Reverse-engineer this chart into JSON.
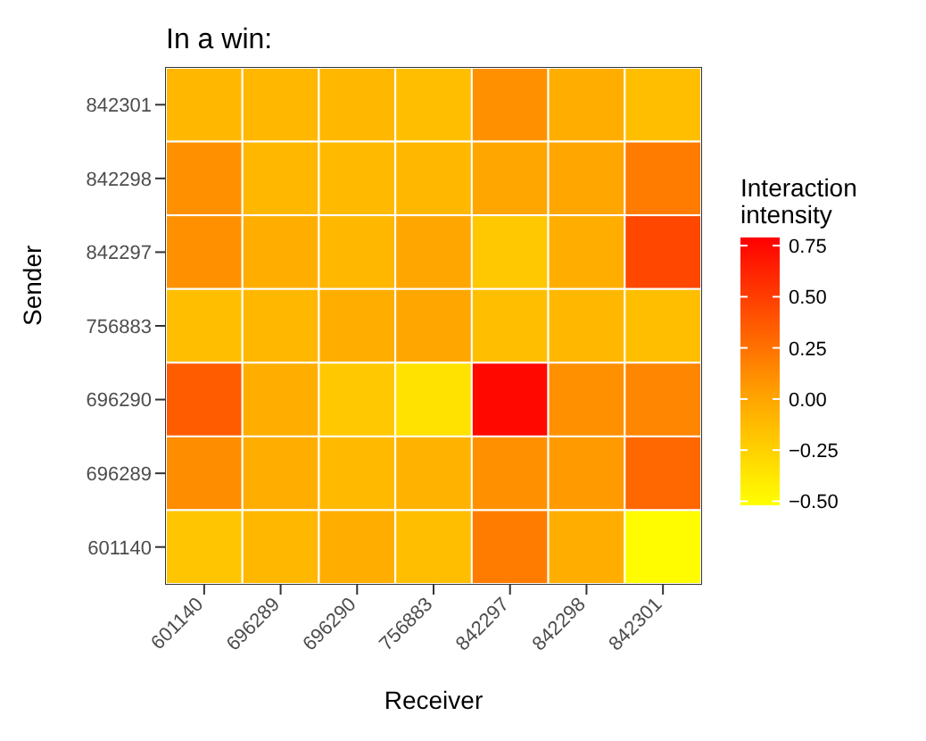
{
  "chart_data": {
    "type": "heatmap",
    "title": "In a win:",
    "xlabel": "Receiver",
    "ylabel": "Sender",
    "clabel": "Interaction intensity",
    "categories": [
      "601140",
      "696289",
      "696290",
      "756883",
      "842297",
      "842298",
      "842301"
    ],
    "y_categories": [
      "842301",
      "842298",
      "842297",
      "756883",
      "696290",
      "696289",
      "601140"
    ],
    "cells": [
      [
        -0.1,
        -0.1,
        -0.1,
        -0.15,
        0.1,
        -0.05,
        -0.15
      ],
      [
        0.1,
        -0.1,
        -0.12,
        -0.1,
        0.0,
        0.0,
        0.2
      ],
      [
        0.1,
        -0.05,
        -0.1,
        0.0,
        -0.2,
        -0.05,
        0.45
      ],
      [
        -0.15,
        -0.1,
        -0.05,
        0.0,
        -0.15,
        -0.1,
        -0.15
      ],
      [
        0.35,
        -0.05,
        -0.2,
        -0.35,
        0.75,
        0.1,
        0.15
      ],
      [
        0.12,
        -0.05,
        -0.12,
        -0.08,
        0.1,
        0.05,
        0.3
      ],
      [
        -0.18,
        -0.1,
        -0.05,
        -0.15,
        0.2,
        -0.05,
        -0.5
      ]
    ],
    "clim": [
      -0.52,
      0.79
    ],
    "cticks": [
      {
        "value": 0.75,
        "label": "0.75"
      },
      {
        "value": 0.5,
        "label": "0.50"
      },
      {
        "value": 0.25,
        "label": "0.25"
      },
      {
        "value": 0,
        "label": "0.00"
      },
      {
        "value": -0.25,
        "label": "−0.25"
      },
      {
        "value": -0.5,
        "label": "−0.50"
      }
    ]
  }
}
